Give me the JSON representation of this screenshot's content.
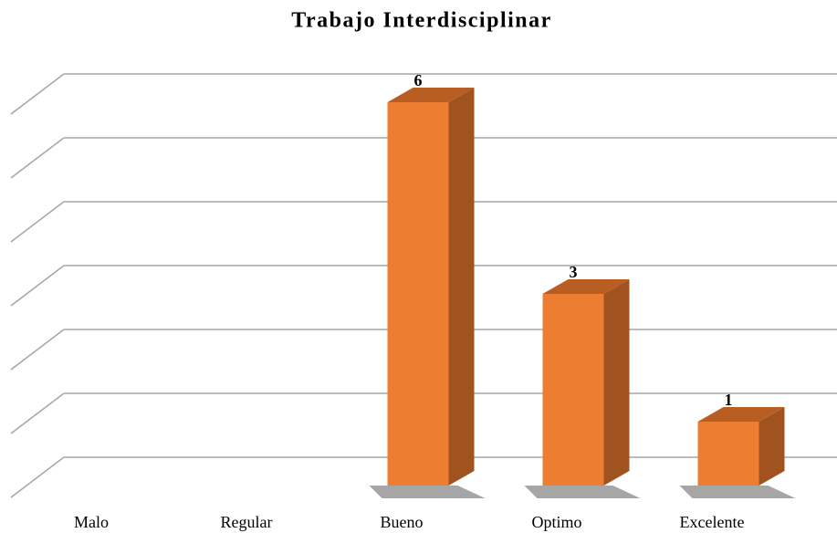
{
  "chart_data": {
    "type": "bar3d",
    "title": "Trabajo Interdisciplinar",
    "categories": [
      "Malo",
      "Regular",
      "Bueno",
      "Optimo",
      "Excelente"
    ],
    "values": [
      0,
      0,
      6,
      3,
      1
    ],
    "color": "#ed7d31",
    "ylim": [
      0,
      6
    ],
    "yticks": [
      0,
      1,
      2,
      3,
      4,
      5,
      6
    ],
    "grid": true,
    "tick_labels": false
  }
}
